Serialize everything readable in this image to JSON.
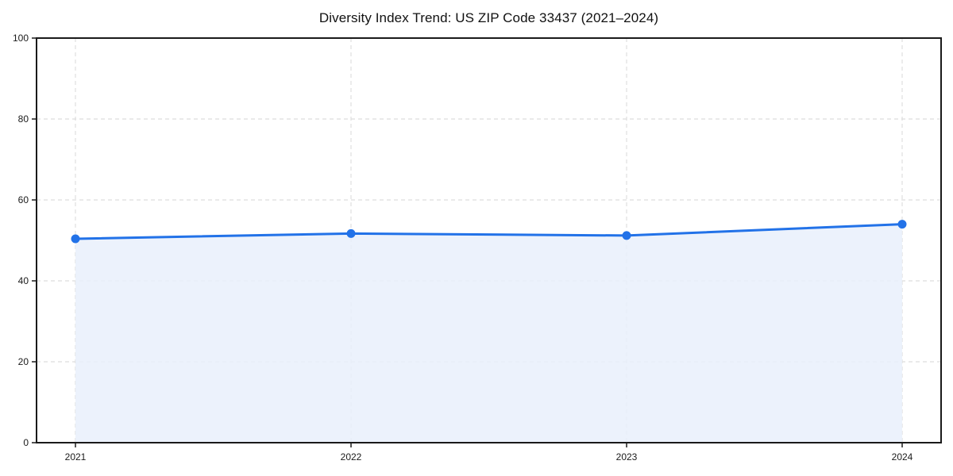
{
  "chart_data": {
    "type": "area",
    "title": "Diversity Index Trend: US ZIP Code 33437 (2021–2024)",
    "categories": [
      "2021",
      "2022",
      "2023",
      "2024"
    ],
    "series": [
      {
        "name": "Diversity Index",
        "values": [
          50.4,
          51.7,
          51.2,
          54.0
        ]
      }
    ],
    "xlabel": "",
    "ylabel": "",
    "ylim": [
      0,
      100
    ],
    "yticks": [
      0,
      20,
      40,
      60,
      80,
      100
    ],
    "grid": true,
    "grid_style": "dashed",
    "legend_position": "none",
    "marker": "circle",
    "colors": {
      "line": "#2272e8",
      "marker": "#2272e8",
      "area_fill": "#e9f0fc",
      "gridline": "#dedede",
      "axis_frame": "#1a1a1a",
      "tick_label": "#1a1a1a",
      "background": "#ffffff"
    }
  }
}
